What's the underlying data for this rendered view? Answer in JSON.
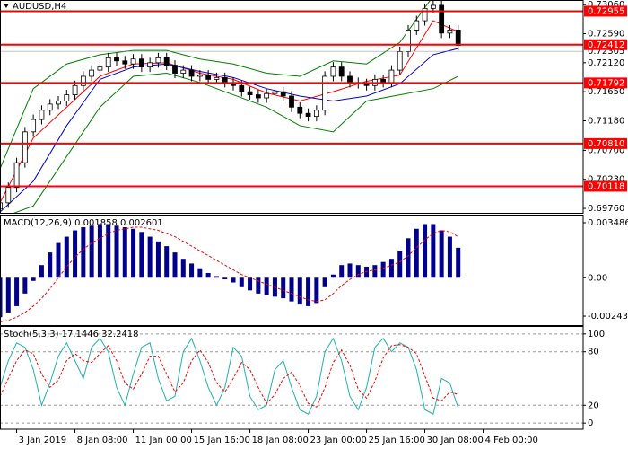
{
  "chart_data": [
    {
      "type": "candlestick",
      "title": "AUDUSD,H4",
      "xlim": [
        0,
        70
      ],
      "ylim": [
        0.69688,
        0.73136
      ],
      "yticks": [
        {
          "value": 0.7306,
          "label": "0.73060"
        },
        {
          "value": 0.7259,
          "label": "0.72590"
        },
        {
          "value": 0.7212,
          "label": "0.72120"
        },
        {
          "value": 0.7165,
          "label": "0.71650"
        },
        {
          "value": 0.7118,
          "label": "0.71180"
        },
        {
          "value": 0.707,
          "label": "0.70700"
        },
        {
          "value": 0.7023,
          "label": "0.70230"
        },
        {
          "value": 0.6976,
          "label": "0.69760"
        }
      ],
      "up_color": "#ffffff",
      "down_color": "#000000",
      "open": [
        0.6975,
        0.6985,
        0.701,
        0.705,
        0.71,
        0.712,
        0.7135,
        0.7145,
        0.715,
        0.716,
        0.7175,
        0.719,
        0.72,
        0.7205,
        0.722,
        0.7215,
        0.721,
        0.7218,
        0.7205,
        0.7212,
        0.722,
        0.7208,
        0.7195,
        0.72,
        0.719,
        0.7192,
        0.7185,
        0.7188,
        0.718,
        0.7175,
        0.7165,
        0.716,
        0.7155,
        0.7162,
        0.7165,
        0.7158,
        0.714,
        0.713,
        0.7125,
        0.7135,
        0.719,
        0.7205,
        0.719,
        0.718,
        0.7178,
        0.7175,
        0.7185,
        0.718,
        0.72,
        0.723,
        0.7265,
        0.728,
        0.73,
        0.7305,
        0.726,
        0.7265
      ],
      "high": [
        0.6993,
        0.7018,
        0.7058,
        0.7108,
        0.7128,
        0.7143,
        0.7153,
        0.7158,
        0.7168,
        0.7183,
        0.7198,
        0.7208,
        0.7213,
        0.7228,
        0.7228,
        0.7223,
        0.7226,
        0.7226,
        0.722,
        0.7228,
        0.7228,
        0.7216,
        0.7208,
        0.7208,
        0.72,
        0.72,
        0.7196,
        0.7196,
        0.7188,
        0.7183,
        0.7173,
        0.7168,
        0.717,
        0.7173,
        0.7173,
        0.7166,
        0.7148,
        0.7138,
        0.7143,
        0.7198,
        0.7213,
        0.7213,
        0.7198,
        0.7188,
        0.7186,
        0.7193,
        0.7193,
        0.7208,
        0.7238,
        0.7273,
        0.7288,
        0.7308,
        0.7313,
        0.7313,
        0.7273,
        0.7273
      ],
      "low": [
        0.6967,
        0.6977,
        0.7002,
        0.7042,
        0.7092,
        0.7112,
        0.7127,
        0.7137,
        0.7142,
        0.7152,
        0.7167,
        0.7182,
        0.7192,
        0.7197,
        0.7207,
        0.7202,
        0.7202,
        0.7197,
        0.7197,
        0.7204,
        0.72,
        0.7187,
        0.7187,
        0.7182,
        0.7182,
        0.7177,
        0.7177,
        0.7172,
        0.7167,
        0.7157,
        0.7152,
        0.7147,
        0.7147,
        0.7154,
        0.715,
        0.7132,
        0.7122,
        0.7117,
        0.7117,
        0.7127,
        0.7182,
        0.7182,
        0.7172,
        0.717,
        0.7167,
        0.7167,
        0.7172,
        0.7172,
        0.7192,
        0.7222,
        0.7257,
        0.7272,
        0.7292,
        0.7252,
        0.7252,
        0.7232
      ],
      "close": [
        0.6985,
        0.701,
        0.705,
        0.71,
        0.712,
        0.7135,
        0.7145,
        0.715,
        0.716,
        0.7175,
        0.719,
        0.72,
        0.7205,
        0.722,
        0.7215,
        0.721,
        0.7218,
        0.7205,
        0.7212,
        0.722,
        0.7208,
        0.7195,
        0.72,
        0.719,
        0.7192,
        0.7185,
        0.7188,
        0.718,
        0.7175,
        0.7165,
        0.716,
        0.7155,
        0.7162,
        0.7165,
        0.7158,
        0.714,
        0.713,
        0.7125,
        0.7135,
        0.719,
        0.7205,
        0.719,
        0.718,
        0.7178,
        0.7175,
        0.7185,
        0.718,
        0.72,
        0.723,
        0.7265,
        0.728,
        0.73,
        0.7305,
        0.726,
        0.7265,
        0.724
      ],
      "lines": [
        {
          "color": "#ff0000",
          "x": [
            0,
            4,
            8,
            12,
            16,
            20,
            24,
            28,
            32,
            36,
            40,
            44,
            48,
            52,
            55
          ],
          "values": [
            0.6985,
            0.709,
            0.714,
            0.719,
            0.721,
            0.7212,
            0.7195,
            0.7185,
            0.7163,
            0.715,
            0.7165,
            0.7182,
            0.7192,
            0.728,
            0.7262
          ]
        },
        {
          "color": "#0000cd",
          "x": [
            0,
            4,
            8,
            12,
            16,
            20,
            24,
            28,
            32,
            36,
            40,
            44,
            48,
            52,
            55
          ],
          "values": [
            0.697,
            0.702,
            0.711,
            0.7185,
            0.7205,
            0.721,
            0.7198,
            0.7188,
            0.717,
            0.7158,
            0.715,
            0.7158,
            0.7178,
            0.7225,
            0.7235
          ]
        },
        {
          "color": "#008000",
          "x": [
            0,
            4,
            8,
            12,
            16,
            20,
            24,
            28,
            32,
            36,
            40,
            44,
            48,
            52,
            55
          ],
          "values": [
            0.704,
            0.717,
            0.721,
            0.7225,
            0.7232,
            0.7232,
            0.7218,
            0.721,
            0.7195,
            0.719,
            0.7215,
            0.721,
            0.7245,
            0.732,
            0.7325
          ]
        },
        {
          "color": "#008000",
          "x": [
            0,
            4,
            8,
            12,
            16,
            20,
            24,
            28,
            32,
            36,
            40,
            44,
            48,
            52,
            55
          ],
          "values": [
            0.696,
            0.698,
            0.706,
            0.714,
            0.719,
            0.7195,
            0.718,
            0.716,
            0.714,
            0.711,
            0.71,
            0.715,
            0.716,
            0.717,
            0.719
          ]
        }
      ],
      "level_color": "#ff0000",
      "levels": [
        0.72955,
        0.72412,
        0.71792,
        {
          "value": 0.7081,
          "label": "0.70810"
        },
        0.70118
      ],
      "current_price": 0.72305
    },
    {
      "type": "macd",
      "title": "MACD(12,26,9) 0.001858 0.002601",
      "xlim": [
        0,
        70
      ],
      "ylim": [
        -0.003,
        0.00394
      ],
      "yticks": [
        0.003486,
        {
          "value": 0,
          "label": "0.00"
        },
        -0.002433
      ],
      "color": "#00008b",
      "signal_color": "#ff0000",
      "values": [
        -0.0025,
        -0.0022,
        -0.0018,
        -0.001,
        -0.0002,
        0.0008,
        0.0016,
        0.0022,
        0.0026,
        0.003,
        0.0032,
        0.0033,
        0.0034,
        0.0034,
        0.0033,
        0.0032,
        0.0031,
        0.0029,
        0.0026,
        0.0023,
        0.002,
        0.0016,
        0.0012,
        0.0009,
        0.0006,
        0.0003,
        0.0001,
        -0.0001,
        -0.0003,
        -0.0006,
        -0.0008,
        -0.001,
        -0.0011,
        -0.0012,
        -0.0013,
        -0.0015,
        -0.0017,
        -0.0018,
        -0.0016,
        -0.0006,
        0.0002,
        0.0008,
        0.0009,
        0.0008,
        0.0007,
        0.0008,
        0.001,
        0.0012,
        0.0017,
        0.0025,
        0.0031,
        0.0034,
        0.0034,
        0.003,
        0.0026,
        0.0019
      ],
      "signal": [
        -0.0028,
        -0.0027,
        -0.0025,
        -0.0022,
        -0.0018,
        -0.0013,
        -0.0007,
        0.0,
        0.0007,
        0.0013,
        0.0018,
        0.0022,
        0.0025,
        0.0028,
        0.003,
        0.0031,
        0.0032,
        0.0032,
        0.0031,
        0.003,
        0.0028,
        0.0026,
        0.0023,
        0.002,
        0.0017,
        0.0014,
        0.0011,
        0.0008,
        0.0005,
        0.0002,
        0.0,
        -0.0002,
        -0.0004,
        -0.0006,
        -0.0008,
        -0.001,
        -0.0012,
        -0.0014,
        -0.0015,
        -0.0014,
        -0.001,
        -0.0005,
        -0.0001,
        0.0002,
        0.0004,
        0.0005,
        0.0006,
        0.0008,
        0.001,
        0.0014,
        0.0019,
        0.0024,
        0.0028,
        0.003,
        0.0029,
        0.0026
      ]
    },
    {
      "type": "stoch",
      "title": "Stoch(5,3,3) 17.1446 32.2418",
      "xlim": [
        0,
        70
      ],
      "ylim": [
        -6.9,
        107.9
      ],
      "yticks": [
        100,
        80,
        20,
        0
      ],
      "grid": true,
      "series": [
        {
          "color": "#20b2aa",
          "dash": false,
          "values": [
            40,
            70,
            90,
            85,
            60,
            20,
            45,
            75,
            90,
            70,
            50,
            85,
            95,
            80,
            40,
            20,
            55,
            85,
            90,
            50,
            25,
            30,
            80,
            95,
            70,
            40,
            20,
            40,
            85,
            75,
            30,
            15,
            20,
            60,
            70,
            40,
            15,
            10,
            30,
            80,
            95,
            70,
            30,
            15,
            40,
            85,
            95,
            80,
            90,
            85,
            60,
            15,
            10,
            50,
            45,
            17
          ]
        },
        {
          "color": "#ff0000",
          "dash": true,
          "values": [
            30,
            50,
            70,
            82,
            78,
            55,
            40,
            48,
            70,
            78,
            70,
            68,
            78,
            87,
            70,
            45,
            38,
            55,
            75,
            75,
            55,
            35,
            45,
            70,
            82,
            68,
            45,
            35,
            50,
            68,
            60,
            40,
            22,
            32,
            50,
            57,
            42,
            22,
            18,
            40,
            68,
            82,
            65,
            38,
            28,
            47,
            73,
            87,
            88,
            85,
            78,
            53,
            28,
            25,
            35,
            32
          ]
        }
      ],
      "xticks": [
        {
          "value": 2,
          "label": "3 Jan 2019"
        },
        {
          "value": 9,
          "label": "8 Jan 08:00"
        },
        {
          "value": 16,
          "label": "11 Jan 00:00"
        },
        {
          "value": 23,
          "label": "15 Jan 16:00"
        },
        {
          "value": 30,
          "label": "18 Jan 08:00"
        },
        {
          "value": 37,
          "label": "23 Jan 00:00"
        },
        {
          "value": 44,
          "label": "25 Jan 16:00"
        },
        {
          "value": 51,
          "label": "30 Jan 08:00"
        },
        {
          "value": 58,
          "label": "4 Feb 00:00"
        }
      ]
    }
  ]
}
